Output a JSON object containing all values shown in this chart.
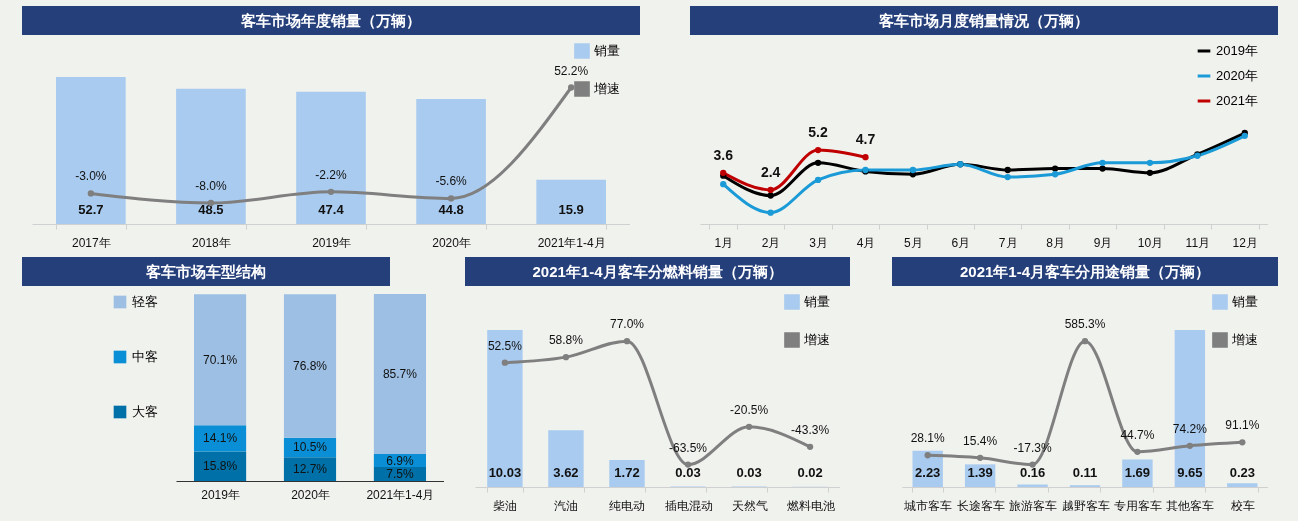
{
  "chart_data": [
    {
      "type": "bar",
      "title": "客车市场年度销量（万辆）",
      "categories": [
        "2017年",
        "2018年",
        "2019年",
        "2020年",
        "2021年1-4月"
      ],
      "legend": "top right",
      "marker": "circle",
      "series": [
        {
          "name": "销量",
          "color": "#a9cbef",
          "values": [
            52.7,
            48.5,
            47.4,
            44.8,
            15.9
          ],
          "value_labels": [
            "52.7",
            "48.5",
            "47.4",
            "44.8",
            "15.9"
          ]
        },
        {
          "name": "增速",
          "type": "line",
          "axis": "y2",
          "color": "#7f7f7f",
          "values": [
            -3.0,
            -8.0,
            -2.2,
            -5.6,
            52.2
          ],
          "value_labels": [
            "-3.0%",
            "-8.0%",
            "-2.2%",
            "-5.6%",
            "52.2%"
          ]
        }
      ]
    },
    {
      "type": "line",
      "title": "客车市场月度销量情况（万辆）",
      "categories": [
        "1月",
        "2月",
        "3月",
        "4月",
        "5月",
        "6月",
        "7月",
        "8月",
        "9月",
        "10月",
        "11月",
        "12月"
      ],
      "legend": "top right",
      "marker": "circle",
      "series": [
        {
          "name": "2019年",
          "color": "#000000",
          "values": [
            3.4,
            2.0,
            4.3,
            3.7,
            3.5,
            4.2,
            3.8,
            3.9,
            3.9,
            3.6,
            4.9,
            6.4
          ]
        },
        {
          "name": "2020年",
          "color": "#1a9ad6",
          "values": [
            2.8,
            0.8,
            3.1,
            3.8,
            3.8,
            4.2,
            3.3,
            3.5,
            4.3,
            4.3,
            4.8,
            6.2
          ]
        },
        {
          "name": "2021年",
          "color": "#c00000",
          "values": [
            3.6,
            2.4,
            5.2,
            4.7,
            null,
            null,
            null,
            null,
            null,
            null,
            null,
            null
          ],
          "value_labels": [
            "3.6",
            "2.4",
            "5.2",
            "4.7",
            null,
            null,
            null,
            null,
            null,
            null,
            null,
            null
          ]
        }
      ]
    },
    {
      "type": "bar",
      "title": "客车市场车型结构",
      "categories": [
        "2019年",
        "2020年",
        "2021年1-4月"
      ],
      "stacked": true,
      "legend": "left",
      "series": [
        {
          "name": "大客",
          "color": "#0070a8",
          "values": [
            15.8,
            12.7,
            7.5
          ],
          "value_labels": [
            "15.8%",
            "12.7%",
            "7.5%"
          ]
        },
        {
          "name": "中客",
          "color": "#0a8fd6",
          "values": [
            14.1,
            10.5,
            6.9
          ],
          "value_labels": [
            "14.1%",
            "10.5%",
            "6.9%"
          ]
        },
        {
          "name": "轻客",
          "color": "#9dbfe3",
          "values": [
            70.1,
            76.8,
            85.7
          ],
          "value_labels": [
            "70.1%",
            "76.8%",
            "85.7%"
          ]
        }
      ]
    },
    {
      "type": "bar",
      "title": "2021年1-4月客车分燃料销量（万辆）",
      "categories": [
        "柴油",
        "汽油",
        "纯电动",
        "插电混动",
        "天然气",
        "燃料电池"
      ],
      "legend": "top right",
      "marker": "circle",
      "series": [
        {
          "name": "销量",
          "color": "#a9cbef",
          "values": [
            10.03,
            3.62,
            1.72,
            0.03,
            0.03,
            0.02
          ],
          "value_labels": [
            "10.03",
            "3.62",
            "1.72",
            "0.03",
            "0.03",
            "0.02"
          ]
        },
        {
          "name": "增速",
          "type": "line",
          "axis": "y2",
          "color": "#7f7f7f",
          "values": [
            52.5,
            58.8,
            77.0,
            -63.5,
            -20.5,
            -43.3
          ],
          "value_labels": [
            "52.5%",
            "58.8%",
            "77.0%",
            "-63.5%",
            "-20.5%",
            "-43.3%"
          ]
        }
      ]
    },
    {
      "type": "bar",
      "title": "2021年1-4月客车分用途销量（万辆）",
      "categories": [
        "城市客车",
        "长途客车",
        "旅游客车",
        "越野客车",
        "专用客车",
        "其他客车",
        "校车"
      ],
      "legend": "top right",
      "marker": "circle",
      "series": [
        {
          "name": "销量",
          "color": "#a9cbef",
          "values": [
            2.23,
            1.39,
            0.16,
            0.11,
            1.69,
            9.65,
            0.23
          ],
          "value_labels": [
            "2.23",
            "1.39",
            "0.16",
            "0.11",
            "1.69",
            "9.65",
            "0.23"
          ]
        },
        {
          "name": "增速",
          "type": "line",
          "axis": "y2",
          "color": "#7f7f7f",
          "values": [
            28.1,
            15.4,
            -17.3,
            585.3,
            44.7,
            74.2,
            91.1
          ],
          "value_labels": [
            "28.1%",
            "15.4%",
            "-17.3%",
            "585.3%",
            "44.7%",
            "74.2%",
            "91.1%"
          ]
        }
      ]
    }
  ]
}
